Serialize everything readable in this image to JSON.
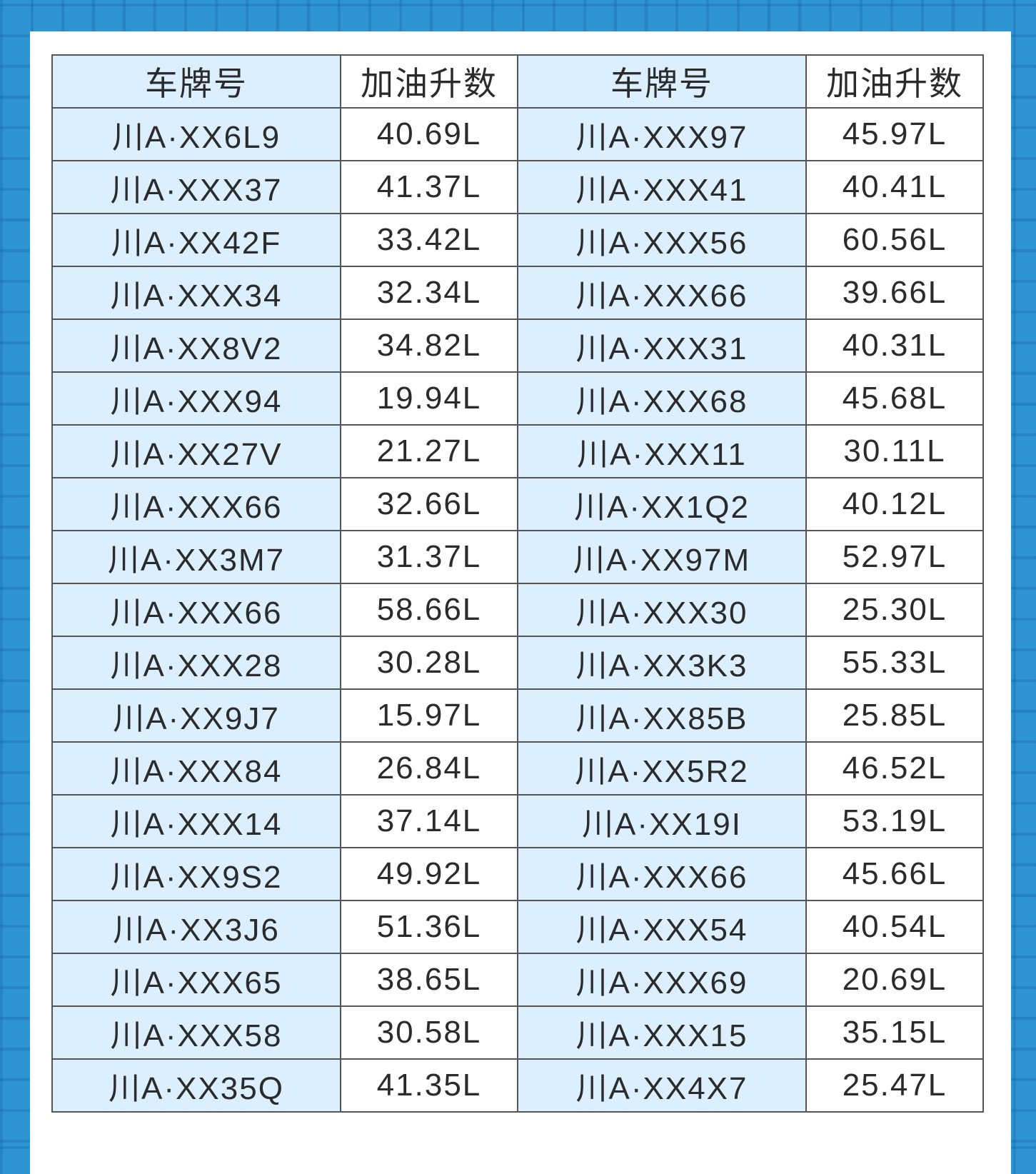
{
  "table": {
    "headers": [
      "车牌号",
      "加油升数",
      "车牌号",
      "加油升数"
    ],
    "rows": [
      [
        "川A·XX6L9",
        "40.69L",
        "川A·XXX97",
        "45.97L"
      ],
      [
        "川A·XXX37",
        "41.37L",
        "川A·XXX41",
        "40.41L"
      ],
      [
        "川A·XX42F",
        "33.42L",
        "川A·XXX56",
        "60.56L"
      ],
      [
        "川A·XXX34",
        "32.34L",
        "川A·XXX66",
        "39.66L"
      ],
      [
        "川A·XX8V2",
        "34.82L",
        "川A·XXX31",
        "40.31L"
      ],
      [
        "川A·XXX94",
        "19.94L",
        "川A·XXX68",
        "45.68L"
      ],
      [
        "川A·XX27V",
        "21.27L",
        "川A·XXX11",
        "30.11L"
      ],
      [
        "川A·XXX66",
        "32.66L",
        "川A·XX1Q2",
        "40.12L"
      ],
      [
        "川A·XX3M7",
        "31.37L",
        "川A·XX97M",
        "52.97L"
      ],
      [
        "川A·XXX66",
        "58.66L",
        "川A·XXX30",
        "25.30L"
      ],
      [
        "川A·XXX28",
        "30.28L",
        "川A·XX3K3",
        "55.33L"
      ],
      [
        "川A·XX9J7",
        "15.97L",
        "川A·XX85B",
        "25.85L"
      ],
      [
        "川A·XXX84",
        "26.84L",
        "川A·XX5R2",
        "46.52L"
      ],
      [
        "川A·XXX14",
        "37.14L",
        "川A·XX19I",
        "53.19L"
      ],
      [
        "川A·XX9S2",
        "49.92L",
        "川A·XXX66",
        "45.66L"
      ],
      [
        "川A·XX3J6",
        "51.36L",
        "川A·XXX54",
        "40.54L"
      ],
      [
        "川A·XXX65",
        "38.65L",
        "川A·XXX69",
        "20.69L"
      ],
      [
        "川A·XXX58",
        "30.58L",
        "川A·XXX15",
        "35.15L"
      ],
      [
        "川A·XX35Q",
        "41.35L",
        "川A·XX4X7",
        "25.47L"
      ]
    ]
  },
  "colors": {
    "background": "#2f95d2",
    "plate_cell": "#dcefff",
    "litre_cell": "#ffffff",
    "text": "#2b2b2b"
  }
}
